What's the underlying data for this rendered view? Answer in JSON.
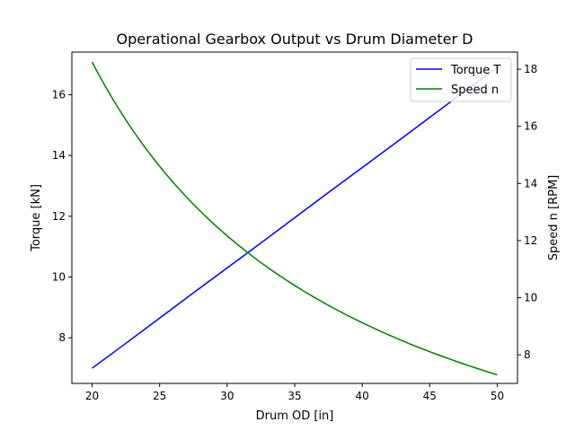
{
  "chart_data": {
    "type": "line",
    "title": "Operational Gearbox Output vs Drum Diameter D",
    "xlabel": "Drum OD [in]",
    "ylabel_left": "Torque [kN]",
    "ylabel_right": "Speed n [RPM]",
    "xlim": [
      18.5,
      51.5
    ],
    "ylim_left": [
      6.5,
      17.4
    ],
    "ylim_right": [
      7.0,
      18.6
    ],
    "x_ticks": [
      20,
      25,
      30,
      35,
      40,
      45,
      50
    ],
    "y_ticks_left": [
      8,
      10,
      12,
      14,
      16
    ],
    "y_ticks_right": [
      8,
      10,
      12,
      14,
      16,
      18
    ],
    "grid": false,
    "legend_position": "top-right",
    "x": [
      20,
      22.5,
      25,
      27.5,
      30,
      32.5,
      35,
      37.5,
      40,
      42.5,
      45,
      47.5,
      50
    ],
    "series": [
      {
        "name": "Torque T",
        "axis": "left",
        "color": "#0000ff",
        "values": [
          7.0,
          7.82,
          8.65,
          9.48,
          10.3,
          11.12,
          11.95,
          12.78,
          13.6,
          14.42,
          15.25,
          16.08,
          16.9
        ]
      },
      {
        "name": "Speed n",
        "axis": "right",
        "color": "#008000",
        "values": [
          18.25,
          16.22,
          14.6,
          13.27,
          12.17,
          11.23,
          10.43,
          9.73,
          9.13,
          8.59,
          8.11,
          7.68,
          7.3
        ]
      }
    ]
  }
}
